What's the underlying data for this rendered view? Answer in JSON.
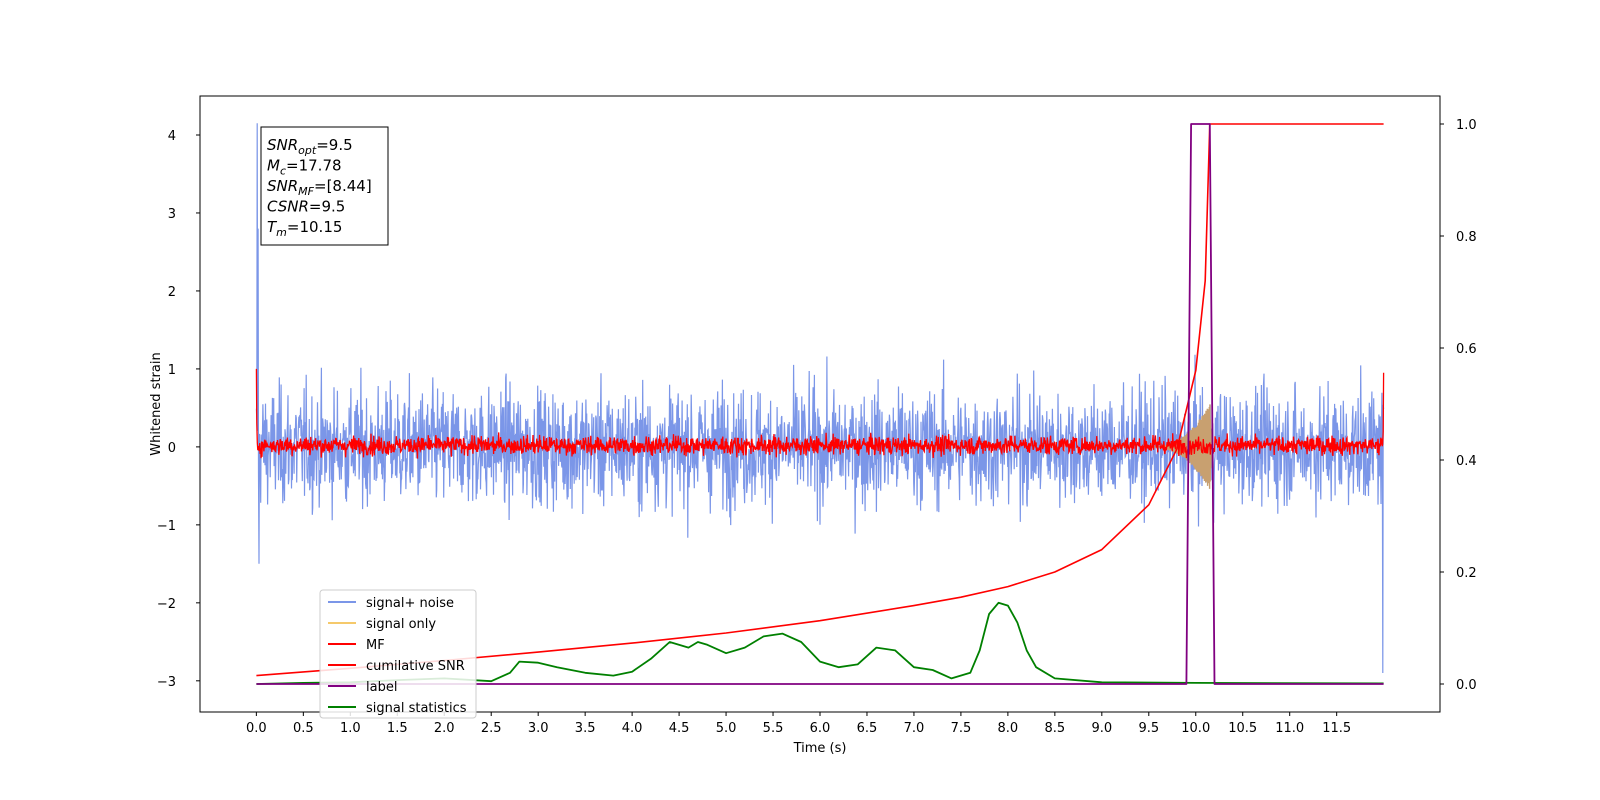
{
  "chart_data": {
    "type": "line",
    "xlabel": "Time (s)",
    "ylabel": "Whitened strain",
    "xlim": [
      -0.6,
      12.6
    ],
    "ylim": [
      -3.4,
      4.5
    ],
    "y2lim": [
      -0.05,
      1.05
    ],
    "x_ticks": [
      "0.0",
      "0.5",
      "1.0",
      "1.5",
      "2.0",
      "2.5",
      "3.0",
      "3.5",
      "4.0",
      "4.5",
      "5.0",
      "5.5",
      "6.0",
      "6.5",
      "7.0",
      "7.5",
      "8.0",
      "8.5",
      "9.0",
      "9.5",
      "10.0",
      "10.5",
      "11.0",
      "11.5"
    ],
    "y_ticks": [
      "−3",
      "−2",
      "−1",
      "0",
      "1",
      "2",
      "3",
      "4"
    ],
    "y2_ticks": [
      "0.0",
      "0.2",
      "0.4",
      "0.6",
      "0.8",
      "1.0"
    ],
    "grid": false,
    "legend_position": "lower-left",
    "info_box": {
      "lines": [
        {
          "main": "SNR",
          "sub": "opt",
          "value": "=9.5"
        },
        {
          "main": "M",
          "sub": "c",
          "value": "=17.78"
        },
        {
          "main": "SNR",
          "sub": "MF",
          "value": "=[8.44]"
        },
        {
          "main": "CSNR",
          "sub": "",
          "value": "=9.5"
        },
        {
          "main": "T",
          "sub": "m",
          "value": "=10.15"
        }
      ]
    },
    "series": [
      {
        "name": "signal+ noise",
        "color": "#7b96e8",
        "axis": "left",
        "description": "noise band",
        "envelope": [
          -1.2,
          1.3
        ],
        "x_range": [
          0.0,
          12.0
        ]
      },
      {
        "name": "signal only",
        "color": "#f5c96b",
        "axis": "left",
        "description": "chirp near merger",
        "peak_amplitude": 0.55,
        "merger_time": 10.15
      },
      {
        "name": "MF",
        "color": "#ff0000",
        "axis": "left",
        "description": "matched filter band",
        "envelope": [
          -0.2,
          0.25
        ],
        "x_range": [
          0.0,
          12.0
        ]
      },
      {
        "name": "cumilative SNR",
        "color": "#ff0000",
        "axis": "right",
        "x": [
          0.0,
          1.0,
          2.0,
          3.0,
          4.0,
          5.0,
          6.0,
          7.0,
          7.5,
          8.0,
          8.5,
          9.0,
          9.5,
          9.8,
          10.0,
          10.1,
          10.15,
          10.2,
          12.0
        ],
        "y": [
          0.015,
          0.028,
          0.042,
          0.057,
          0.073,
          0.091,
          0.113,
          0.14,
          0.155,
          0.174,
          0.2,
          0.24,
          0.32,
          0.42,
          0.56,
          0.72,
          1.0,
          1.0,
          1.0
        ]
      },
      {
        "name": "label",
        "color": "#800080",
        "axis": "right",
        "x": [
          0.0,
          9.9,
          9.95,
          10.15,
          10.2,
          12.0
        ],
        "y": [
          0.0,
          0.0,
          1.0,
          1.0,
          0.0,
          0.0
        ]
      },
      {
        "name": "signal statistics",
        "color": "#008000",
        "axis": "right",
        "x": [
          0.0,
          0.5,
          1.0,
          1.5,
          2.0,
          2.5,
          2.7,
          2.8,
          3.0,
          3.2,
          3.5,
          3.8,
          4.0,
          4.2,
          4.4,
          4.6,
          4.7,
          4.8,
          5.0,
          5.2,
          5.4,
          5.6,
          5.8,
          6.0,
          6.2,
          6.4,
          6.6,
          6.8,
          7.0,
          7.2,
          7.4,
          7.6,
          7.7,
          7.8,
          7.9,
          8.0,
          8.1,
          8.2,
          8.3,
          8.5,
          9.0,
          10.0,
          12.0
        ],
        "y": [
          0.0,
          0.002,
          0.003,
          0.007,
          0.01,
          0.005,
          0.02,
          0.04,
          0.038,
          0.03,
          0.02,
          0.015,
          0.022,
          0.045,
          0.075,
          0.065,
          0.075,
          0.07,
          0.055,
          0.065,
          0.085,
          0.09,
          0.075,
          0.04,
          0.03,
          0.035,
          0.065,
          0.06,
          0.03,
          0.025,
          0.01,
          0.02,
          0.06,
          0.125,
          0.145,
          0.14,
          0.11,
          0.06,
          0.03,
          0.01,
          0.003,
          0.002,
          0.001
        ]
      }
    ]
  }
}
